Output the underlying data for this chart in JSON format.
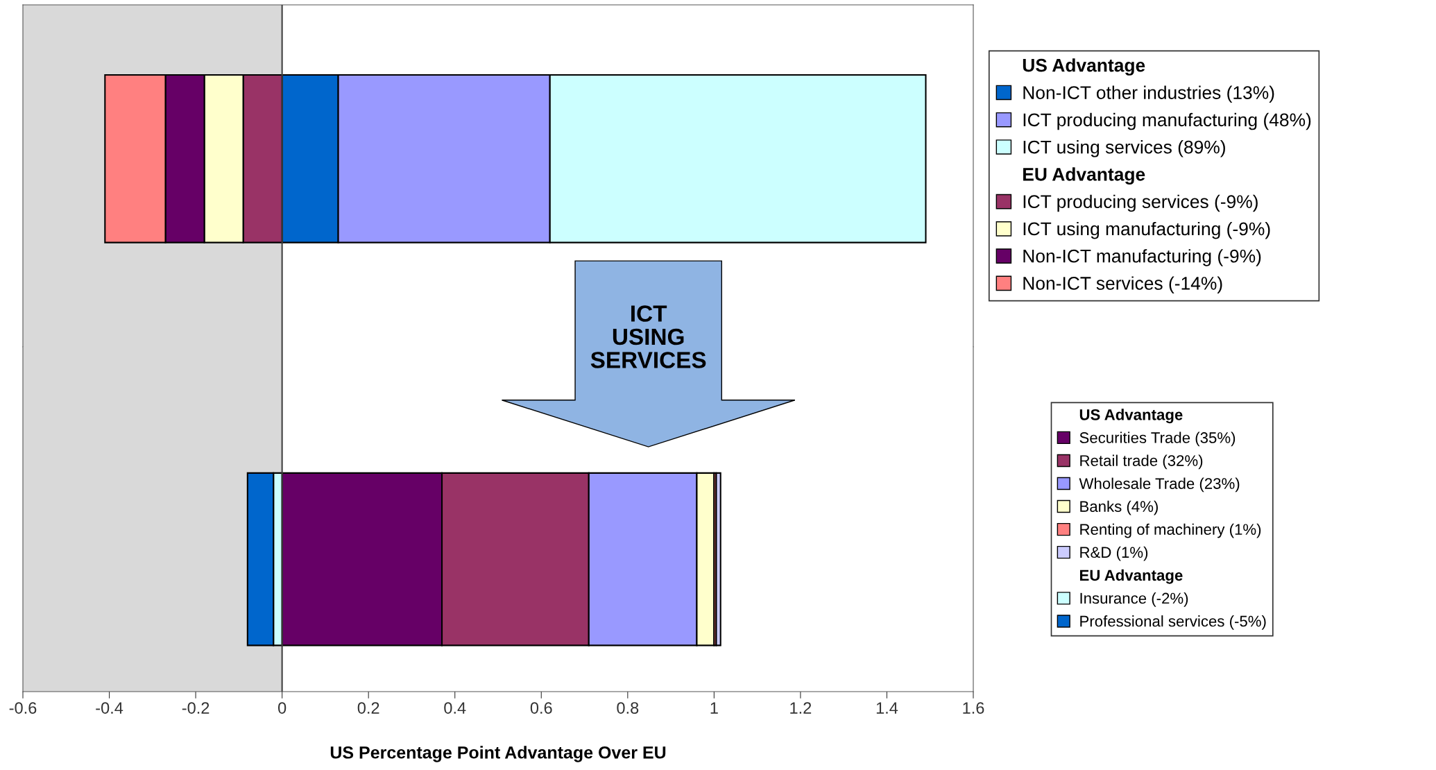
{
  "chart_data": [
    {
      "type": "bar",
      "orientation": "horizontal",
      "stacked": true,
      "categories": [
        null
      ],
      "xlim": [
        -0.6,
        1.6
      ],
      "tick_labels": false,
      "legend": "right",
      "grid": false,
      "bands": [
        {
          "axis": "x",
          "from": -0.6,
          "to": 0,
          "color": "#d9d9d9"
        }
      ],
      "ref_lines": [
        {
          "axis": "x",
          "value": 0,
          "color": "#404040"
        }
      ],
      "annotations": [
        "US Advantage",
        "EU Advantage",
        "ICT\nUSING\nSERVICES"
      ],
      "series": [
        {
          "name": "Non-ICT other industries (13%)",
          "color": "#0066cc",
          "values": [
            0.13
          ]
        },
        {
          "name": "ICT producing manufacturing (48%)",
          "color": "#9999ff",
          "values": [
            0.49
          ]
        },
        {
          "name": "ICT using services (89%)",
          "color": "#ccffff",
          "values": [
            0.87
          ]
        },
        {
          "name": "ICT producing services (-9%)",
          "color": "#993366",
          "values": [
            -0.09
          ]
        },
        {
          "name": "ICT using manufacturing (-9%)",
          "color": "#ffffcc",
          "values": [
            -0.09
          ]
        },
        {
          "name": "Non-ICT manufacturing (-9%)",
          "color": "#660066",
          "values": [
            -0.09
          ]
        },
        {
          "name": "Non-ICT services (-14%)",
          "color": "#ff8080",
          "values": [
            -0.14
          ]
        }
      ]
    },
    {
      "type": "bar",
      "orientation": "horizontal",
      "stacked": true,
      "categories": [
        null
      ],
      "xlim": [
        -0.6,
        1.6
      ],
      "xticks": [
        -0.6,
        -0.4,
        -0.2,
        0,
        0.2,
        0.4,
        0.6,
        0.8,
        1,
        1.2,
        1.4,
        1.6
      ],
      "tick_labels": "x",
      "legend": "right",
      "grid": false,
      "xlabel": "US Percentage Point Advantage Over EU",
      "bands": [
        {
          "axis": "x",
          "from": -0.6,
          "to": 0,
          "color": "#d9d9d9"
        }
      ],
      "ref_lines": [
        {
          "axis": "x",
          "value": 0,
          "color": "#404040"
        }
      ],
      "annotations": [
        "US Advantage",
        "EU Advantage"
      ],
      "series": [
        {
          "name": "Securities Trade (35%)",
          "color": "#660066",
          "values": [
            0.37
          ]
        },
        {
          "name": "Retail trade (32%)",
          "color": "#993366",
          "values": [
            0.34
          ]
        },
        {
          "name": "Wholesale Trade (23%)",
          "color": "#9999ff",
          "values": [
            0.25
          ]
        },
        {
          "name": "Banks (4%)",
          "color": "#ffffcc",
          "values": [
            0.04
          ]
        },
        {
          "name": "Renting of machinery (1%)",
          "color": "#ff8080",
          "values": [
            0.005
          ]
        },
        {
          "name": "R&D (1%)",
          "color": "#ccccff",
          "values": [
            0.01
          ]
        },
        {
          "name": "Insurance (-2%)",
          "color": "#ccffff",
          "values": [
            -0.02
          ]
        },
        {
          "name": "Professional services (-5%)",
          "color": "#0066cc",
          "values": [
            -0.06
          ]
        }
      ]
    }
  ]
}
